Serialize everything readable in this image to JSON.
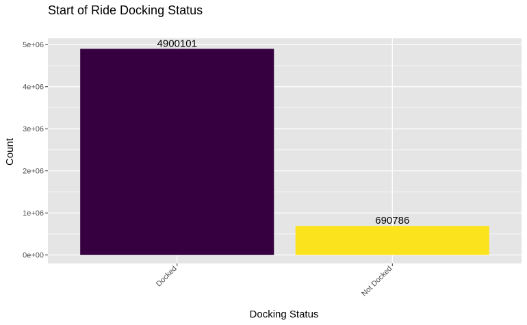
{
  "chart_data": {
    "type": "bar",
    "title": "Start of Ride Docking Status",
    "xlabel": "Docking Status",
    "ylabel": "Count",
    "categories": [
      "Docked",
      "Not Docked"
    ],
    "values": [
      4900101,
      690786
    ],
    "data_labels": [
      "4900101",
      "690786"
    ],
    "bar_colors": [
      "#360040",
      "#fbe31e"
    ],
    "ylim": [
      -200000,
      5150000
    ],
    "yticks": [
      0,
      1000000,
      2000000,
      3000000,
      4000000,
      5000000
    ],
    "ytick_labels": [
      "0e+00",
      "1e+06",
      "2e+06",
      "3e+06",
      "4e+06",
      "5e+06"
    ],
    "grid": true,
    "panel_color": "#e5e5e5",
    "grid_color": "#ffffff",
    "legend": "none",
    "x_tick_label_rotation": "45 degrees"
  }
}
